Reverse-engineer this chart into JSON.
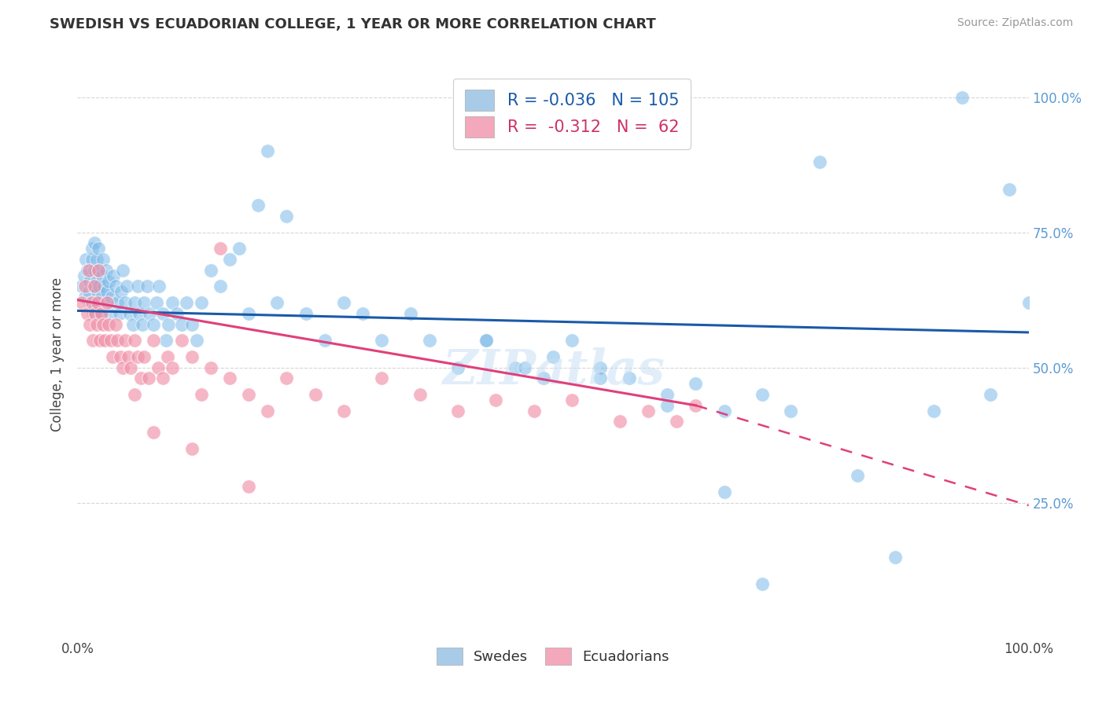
{
  "title": "SWEDISH VS ECUADORIAN COLLEGE, 1 YEAR OR MORE CORRELATION CHART",
  "source": "Source: ZipAtlas.com",
  "ylabel": "College, 1 year or more",
  "swedes_color": "#7ab8e8",
  "ecuadorians_color": "#f090a8",
  "swedes_R": -0.036,
  "ecuadorians_R": -0.312,
  "swedes_N": 105,
  "ecuadorians_N": 62,
  "watermark": "ZIPatlas",
  "background_color": "#ffffff",
  "grid_color": "#cccccc",
  "blue_line": [
    0.0,
    0.605,
    1.0,
    0.565
  ],
  "pink_line_solid": [
    0.0,
    0.625,
    0.65,
    0.43
  ],
  "pink_line_dash": [
    0.65,
    0.43,
    1.0,
    0.245
  ],
  "xlim": [
    0.0,
    1.0
  ],
  "ylim": [
    0.0,
    1.05
  ],
  "yticks": [
    0.25,
    0.5,
    0.75,
    1.0
  ],
  "ytick_right_labels": [
    "25.0%",
    "50.0%",
    "75.0%",
    "100.0%"
  ],
  "legend_swedes_label": "R = -0.036   N = 105",
  "legend_ecuadorians_label": "R =  -0.312   N =  62",
  "legend_patch_blue": "#a8cce8",
  "legend_patch_pink": "#f4a8bc",
  "swedes_x": [
    0.005,
    0.007,
    0.008,
    0.009,
    0.01,
    0.012,
    0.013,
    0.014,
    0.015,
    0.015,
    0.016,
    0.017,
    0.018,
    0.018,
    0.019,
    0.02,
    0.02,
    0.021,
    0.022,
    0.022,
    0.023,
    0.024,
    0.025,
    0.026,
    0.027,
    0.028,
    0.03,
    0.03,
    0.031,
    0.033,
    0.034,
    0.036,
    0.038,
    0.04,
    0.042,
    0.044,
    0.046,
    0.048,
    0.05,
    0.052,
    0.055,
    0.058,
    0.06,
    0.063,
    0.065,
    0.068,
    0.07,
    0.073,
    0.076,
    0.08,
    0.083,
    0.086,
    0.09,
    0.093,
    0.096,
    0.1,
    0.105,
    0.11,
    0.115,
    0.12,
    0.125,
    0.13,
    0.14,
    0.15,
    0.16,
    0.17,
    0.18,
    0.19,
    0.2,
    0.21,
    0.22,
    0.24,
    0.26,
    0.28,
    0.3,
    0.32,
    0.35,
    0.37,
    0.4,
    0.43,
    0.46,
    0.49,
    0.52,
    0.55,
    0.58,
    0.62,
    0.65,
    0.68,
    0.72,
    0.75,
    0.78,
    0.82,
    0.86,
    0.9,
    0.93,
    0.96,
    0.98,
    1.0,
    0.47,
    0.43,
    0.55,
    0.5,
    0.62,
    0.68,
    0.72
  ],
  "swedes_y": [
    0.65,
    0.67,
    0.63,
    0.7,
    0.68,
    0.64,
    0.66,
    0.62,
    0.7,
    0.72,
    0.65,
    0.6,
    0.68,
    0.73,
    0.62,
    0.66,
    0.7,
    0.64,
    0.68,
    0.72,
    0.65,
    0.6,
    0.63,
    0.67,
    0.7,
    0.65,
    0.62,
    0.68,
    0.64,
    0.66,
    0.6,
    0.63,
    0.67,
    0.65,
    0.62,
    0.6,
    0.64,
    0.68,
    0.62,
    0.65,
    0.6,
    0.58,
    0.62,
    0.65,
    0.6,
    0.58,
    0.62,
    0.65,
    0.6,
    0.58,
    0.62,
    0.65,
    0.6,
    0.55,
    0.58,
    0.62,
    0.6,
    0.58,
    0.62,
    0.58,
    0.55,
    0.62,
    0.68,
    0.65,
    0.7,
    0.72,
    0.6,
    0.8,
    0.9,
    0.62,
    0.78,
    0.6,
    0.55,
    0.62,
    0.6,
    0.55,
    0.6,
    0.55,
    0.5,
    0.55,
    0.5,
    0.48,
    0.55,
    0.5,
    0.48,
    0.45,
    0.47,
    0.42,
    0.45,
    0.42,
    0.88,
    0.3,
    0.15,
    0.42,
    1.0,
    0.45,
    0.83,
    0.62,
    0.5,
    0.55,
    0.48,
    0.52,
    0.43,
    0.27,
    0.1
  ],
  "ecuadorians_x": [
    0.005,
    0.008,
    0.01,
    0.012,
    0.013,
    0.015,
    0.016,
    0.018,
    0.019,
    0.02,
    0.021,
    0.022,
    0.024,
    0.025,
    0.027,
    0.029,
    0.031,
    0.033,
    0.035,
    0.037,
    0.04,
    0.042,
    0.045,
    0.048,
    0.05,
    0.053,
    0.056,
    0.06,
    0.063,
    0.067,
    0.07,
    0.075,
    0.08,
    0.085,
    0.09,
    0.095,
    0.1,
    0.11,
    0.12,
    0.13,
    0.14,
    0.16,
    0.18,
    0.2,
    0.22,
    0.25,
    0.28,
    0.32,
    0.36,
    0.4,
    0.44,
    0.48,
    0.52,
    0.57,
    0.6,
    0.63,
    0.65,
    0.15,
    0.08,
    0.06,
    0.18,
    0.12
  ],
  "ecuadorians_y": [
    0.62,
    0.65,
    0.6,
    0.68,
    0.58,
    0.62,
    0.55,
    0.65,
    0.6,
    0.58,
    0.62,
    0.68,
    0.55,
    0.6,
    0.58,
    0.55,
    0.62,
    0.58,
    0.55,
    0.52,
    0.58,
    0.55,
    0.52,
    0.5,
    0.55,
    0.52,
    0.5,
    0.55,
    0.52,
    0.48,
    0.52,
    0.48,
    0.55,
    0.5,
    0.48,
    0.52,
    0.5,
    0.55,
    0.52,
    0.45,
    0.5,
    0.48,
    0.45,
    0.42,
    0.48,
    0.45,
    0.42,
    0.48,
    0.45,
    0.42,
    0.44,
    0.42,
    0.44,
    0.4,
    0.42,
    0.4,
    0.43,
    0.72,
    0.38,
    0.45,
    0.28,
    0.35
  ]
}
